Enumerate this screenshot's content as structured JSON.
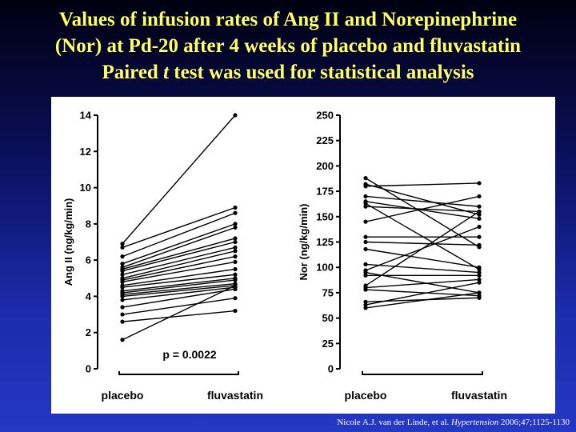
{
  "title": {
    "line1": "Values of infusion rates of Ang II and Norepinephrine",
    "line2": "(Nor) at Pd-20 after 4 weeks of placebo and fluvastatin",
    "line3_pre": "Paired ",
    "line3_italic": "t",
    "line3_post": " test was used for statistical analysis"
  },
  "citation": {
    "authors": "Nicole A.J. van der Linde, et al. ",
    "journal": "Hypertension",
    "ref": " 2006;47;1125-1130"
  },
  "colors": {
    "title": "#ffff66",
    "background_top": "#000010",
    "background_bottom": "#2438c4",
    "ink": "#000000"
  },
  "chart_data": [
    {
      "type": "line",
      "ylabel": "Ang II (ng/kg/min)",
      "categories": [
        "placebo",
        "fluvastatin"
      ],
      "ylim": [
        0,
        14
      ],
      "yticks": [
        0,
        2,
        4,
        6,
        8,
        10,
        12,
        14
      ],
      "annotation": "p = 0.0022",
      "pairs": [
        [
          6.9,
          14.0
        ],
        [
          6.7,
          8.9
        ],
        [
          6.2,
          8.6
        ],
        [
          5.8,
          8.0
        ],
        [
          5.6,
          7.8
        ],
        [
          5.5,
          7.2
        ],
        [
          5.4,
          7.0
        ],
        [
          5.2,
          6.7
        ],
        [
          5.0,
          6.5
        ],
        [
          4.9,
          6.2
        ],
        [
          4.8,
          5.9
        ],
        [
          4.6,
          5.5
        ],
        [
          4.5,
          5.2
        ],
        [
          4.3,
          5.0
        ],
        [
          4.2,
          4.9
        ],
        [
          4.1,
          4.7
        ],
        [
          4.0,
          4.6
        ],
        [
          3.8,
          4.5
        ],
        [
          3.4,
          4.4
        ],
        [
          3.0,
          3.9
        ],
        [
          2.6,
          3.2
        ],
        [
          1.6,
          4.6
        ]
      ]
    },
    {
      "type": "line",
      "ylabel": "Nor (ng/kg/min)",
      "categories": [
        "placebo",
        "fluvastatin"
      ],
      "ylim": [
        0,
        250
      ],
      "yticks": [
        0,
        25,
        50,
        75,
        100,
        125,
        150,
        175,
        200,
        225,
        250
      ],
      "pairs": [
        [
          188,
          120
        ],
        [
          182,
          152
        ],
        [
          180,
          183
        ],
        [
          170,
          160
        ],
        [
          165,
          148
        ],
        [
          163,
          98
        ],
        [
          160,
          155
        ],
        [
          145,
          170
        ],
        [
          130,
          130
        ],
        [
          125,
          122
        ],
        [
          118,
          100
        ],
        [
          103,
          95
        ],
        [
          97,
          140
        ],
        [
          95,
          75
        ],
        [
          92,
          92
        ],
        [
          82,
          155
        ],
        [
          80,
          88
        ],
        [
          78,
          72
        ],
        [
          66,
          70
        ],
        [
          63,
          85
        ],
        [
          60,
          75
        ]
      ]
    }
  ]
}
